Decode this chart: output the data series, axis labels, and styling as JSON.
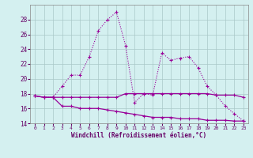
{
  "xlabel": "Windchill (Refroidissement éolien,°C)",
  "x": [
    0,
    1,
    2,
    3,
    4,
    5,
    6,
    7,
    8,
    9,
    10,
    11,
    12,
    13,
    14,
    15,
    16,
    17,
    18,
    19,
    20,
    21,
    22,
    23
  ],
  "line1": [
    17.7,
    17.5,
    17.5,
    17.5,
    17.5,
    17.5,
    17.5,
    17.5,
    17.5,
    17.5,
    18.0,
    18.0,
    18.0,
    18.0,
    18.0,
    18.0,
    18.0,
    18.0,
    18.0,
    18.0,
    17.8,
    17.8,
    17.8,
    17.5
  ],
  "line2": [
    17.7,
    17.5,
    17.5,
    16.3,
    16.3,
    16.0,
    16.0,
    16.0,
    15.8,
    15.6,
    15.4,
    15.2,
    15.0,
    14.8,
    14.8,
    14.8,
    14.6,
    14.6,
    14.6,
    14.4,
    14.4,
    14.4,
    14.3,
    14.3
  ],
  "line3": [
    17.7,
    17.5,
    17.5,
    19.0,
    20.5,
    20.5,
    23.0,
    26.5,
    28.0,
    29.0,
    24.5,
    16.8,
    18.0,
    17.8,
    23.5,
    22.5,
    22.8,
    23.0,
    21.5,
    19.0,
    17.8,
    16.3,
    15.3,
    14.3
  ],
  "line_color": "#990099",
  "bg_color": "#d4f0f0",
  "grid_color": "#aac8c8",
  "ylim": [
    14,
    30
  ],
  "xlim": [
    -0.5,
    23.5
  ],
  "yticks": [
    14,
    16,
    18,
    20,
    22,
    24,
    26,
    28
  ],
  "xticks": [
    0,
    1,
    2,
    3,
    4,
    5,
    6,
    7,
    8,
    9,
    10,
    11,
    12,
    13,
    14,
    15,
    16,
    17,
    18,
    19,
    20,
    21,
    22,
    23
  ]
}
